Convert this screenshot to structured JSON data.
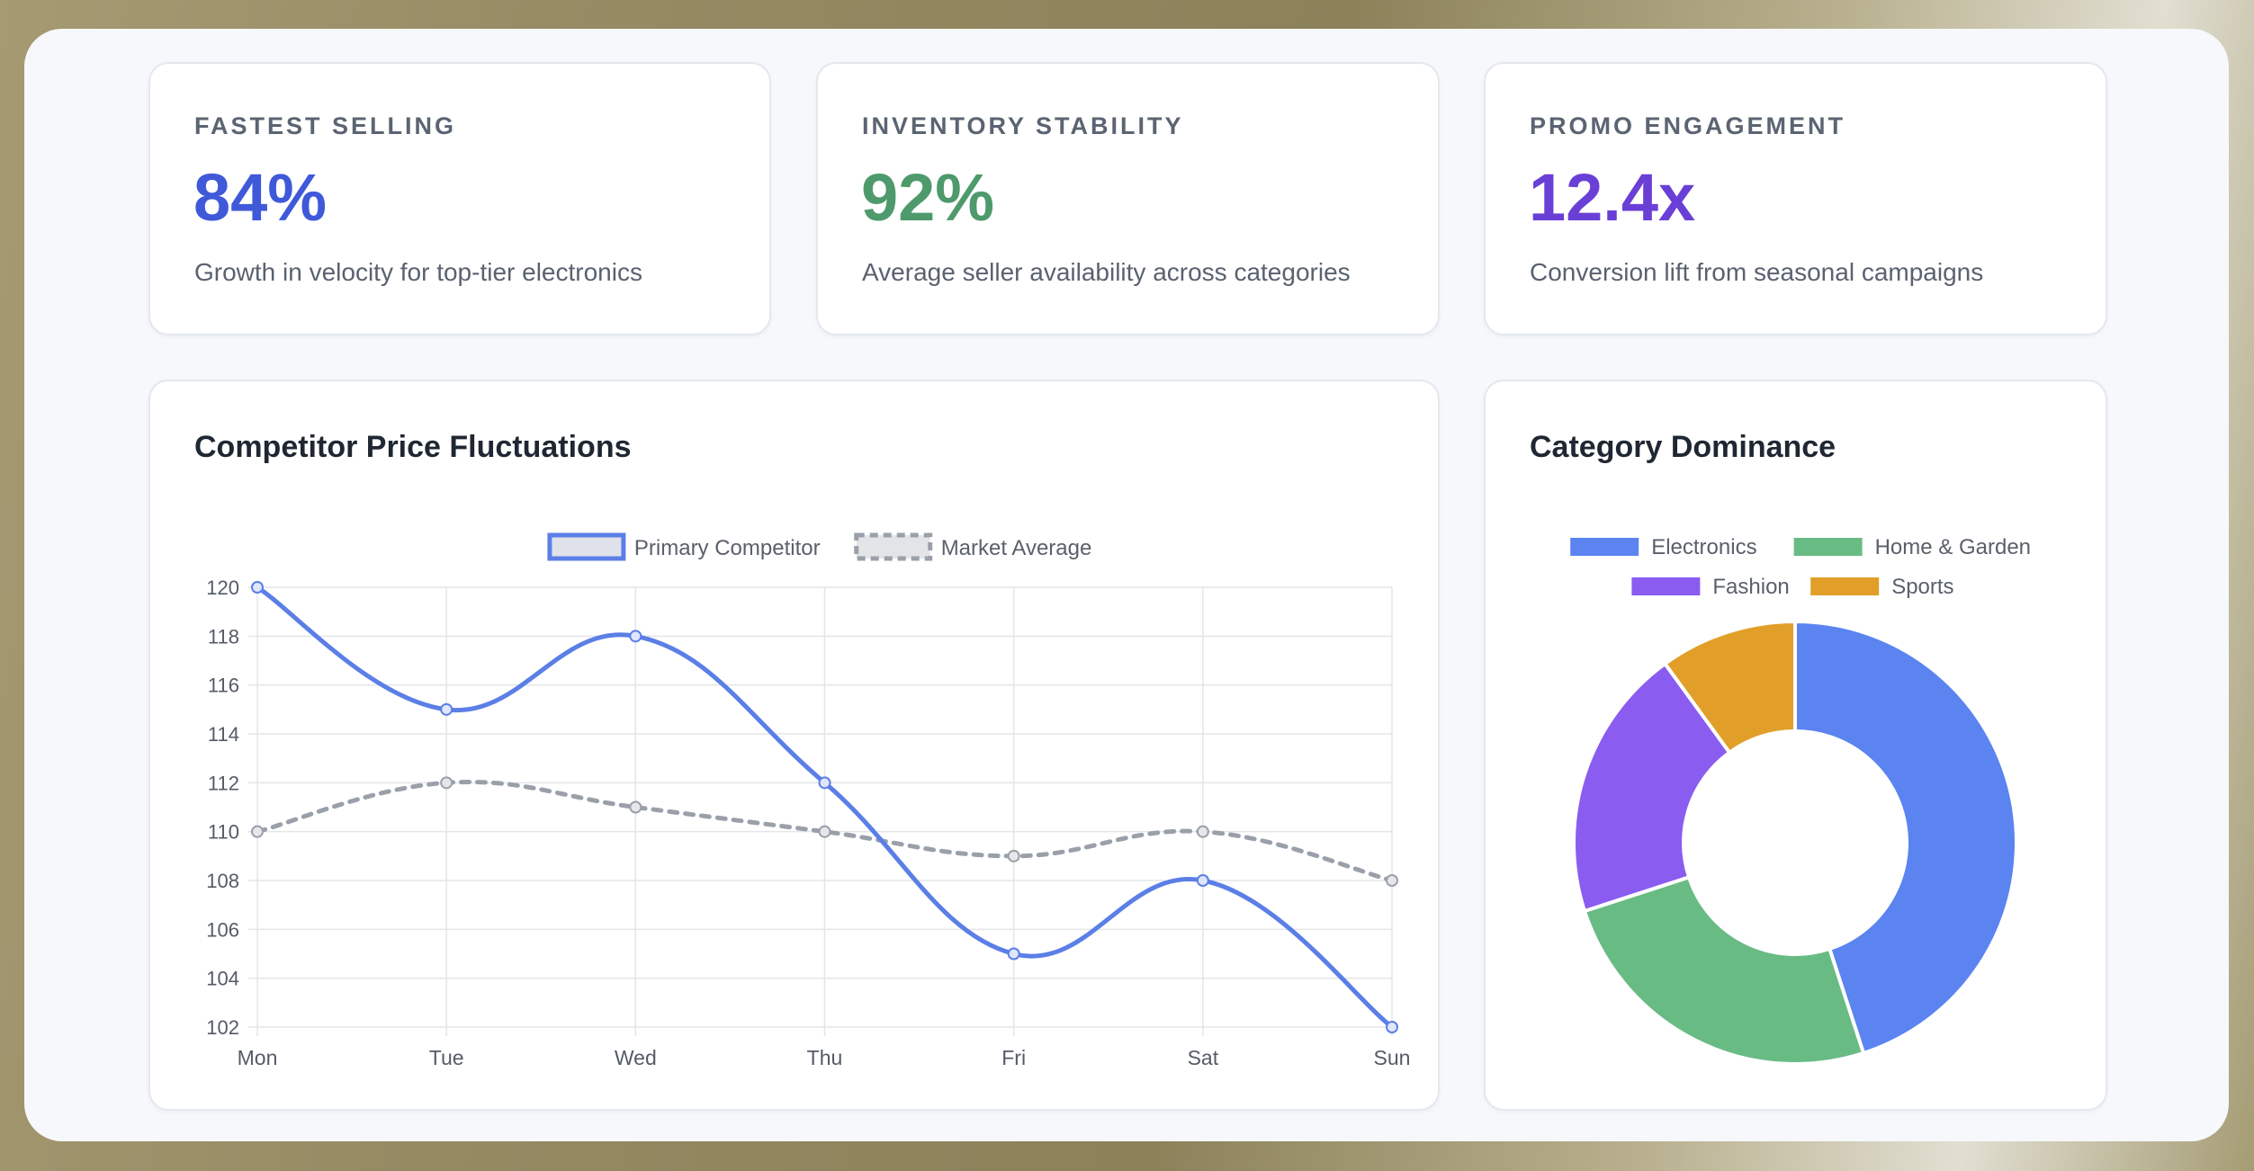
{
  "kpis": [
    {
      "label": "FASTEST SELLING",
      "value": "84%",
      "sub": "Growth in velocity for top-tier electronics",
      "color": "#3f59d9"
    },
    {
      "label": "INVENTORY STABILITY",
      "value": "92%",
      "sub": "Average seller availability across categories",
      "color": "#4e9a6c"
    },
    {
      "label": "PROMO ENGAGEMENT",
      "value": "12.4x",
      "sub": "Conversion lift from seasonal campaigns",
      "color": "#6a3fd6"
    }
  ],
  "line_card": {
    "title": "Competitor Price Fluctuations"
  },
  "donut_card": {
    "title": "Category Dominance"
  },
  "chart_data": [
    {
      "type": "line",
      "title": "Competitor Price Fluctuations",
      "categories": [
        "Mon",
        "Tue",
        "Wed",
        "Thu",
        "Fri",
        "Sat",
        "Sun"
      ],
      "series": [
        {
          "name": "Primary Competitor",
          "values": [
            120,
            115,
            118,
            112,
            105,
            108,
            102
          ],
          "color": "#5b7fe6",
          "style": "solid"
        },
        {
          "name": "Market Average",
          "values": [
            110,
            112,
            111,
            110,
            109,
            110,
            108
          ],
          "color": "#9aa0aa",
          "style": "dashed"
        }
      ],
      "ylim": [
        102,
        120
      ],
      "yticks": [
        120,
        118,
        116,
        114,
        112,
        110,
        108,
        106,
        104,
        102
      ],
      "grid": true,
      "legend": "top-center"
    },
    {
      "type": "pie",
      "variant": "donut",
      "title": "Category Dominance",
      "categories": [
        "Electronics",
        "Home & Garden",
        "Fashion",
        "Sports"
      ],
      "values": [
        45,
        25,
        20,
        10
      ],
      "colors": [
        "#5b84f1",
        "#69bb84",
        "#8a5cf0",
        "#e19f2a"
      ],
      "legend": "top-center"
    }
  ]
}
